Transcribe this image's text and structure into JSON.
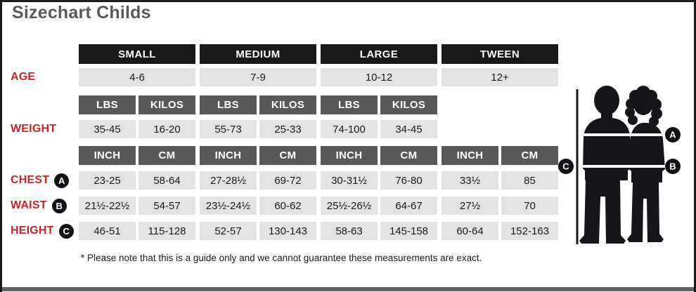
{
  "title": "Sizechart Childs",
  "footnote": "* Please note that this is a guide only and we cannot guarantee these measurements are exact.",
  "colors": {
    "size_header_bg": "#181818",
    "unit_header_bg": "#59595b",
    "value_cell_bg": "#e3e3e4",
    "label_red": "#c9232b",
    "title_gray": "#58595b",
    "silhouette_black": "#16161a"
  },
  "table": {
    "size_headers": [
      "SMALL",
      "MEDIUM",
      "LARGE",
      "TWEEN"
    ],
    "rows": [
      {
        "type": "merged",
        "label": "AGE",
        "cells": [
          "4-6",
          "7-9",
          "10-12",
          "12+"
        ]
      },
      {
        "type": "units",
        "cells": [
          "LBS",
          "KILOS",
          "LBS",
          "KILOS",
          "LBS",
          "KILOS"
        ]
      },
      {
        "type": "values",
        "label": "WEIGHT",
        "cells": [
          "35-45",
          "16-20",
          "55-73",
          "25-33",
          "74-100",
          "34-45"
        ]
      },
      {
        "type": "units",
        "cells": [
          "INCH",
          "CM",
          "INCH",
          "CM",
          "INCH",
          "CM",
          "INCH",
          "CM"
        ]
      },
      {
        "type": "values",
        "label": "CHEST",
        "marker": "A",
        "cells": [
          "23-25",
          "58-64",
          "27-28½",
          "69-72",
          "30-31½",
          "76-80",
          "33½",
          "85"
        ]
      },
      {
        "type": "values",
        "label": "WAIST",
        "marker": "B",
        "cells": [
          "21½-22½",
          "54-57",
          "23½-24½",
          "60-62",
          "25½-26½",
          "64-67",
          "27½",
          "70"
        ]
      },
      {
        "type": "values",
        "label": "HEIGHT",
        "marker": "C",
        "cells": [
          "46-51",
          "115-128",
          "52-57",
          "130-143",
          "58-63",
          "145-158",
          "60-64",
          "152-163"
        ]
      }
    ]
  },
  "figure": {
    "marker_a": "A",
    "marker_b": "B",
    "marker_c": "C"
  }
}
